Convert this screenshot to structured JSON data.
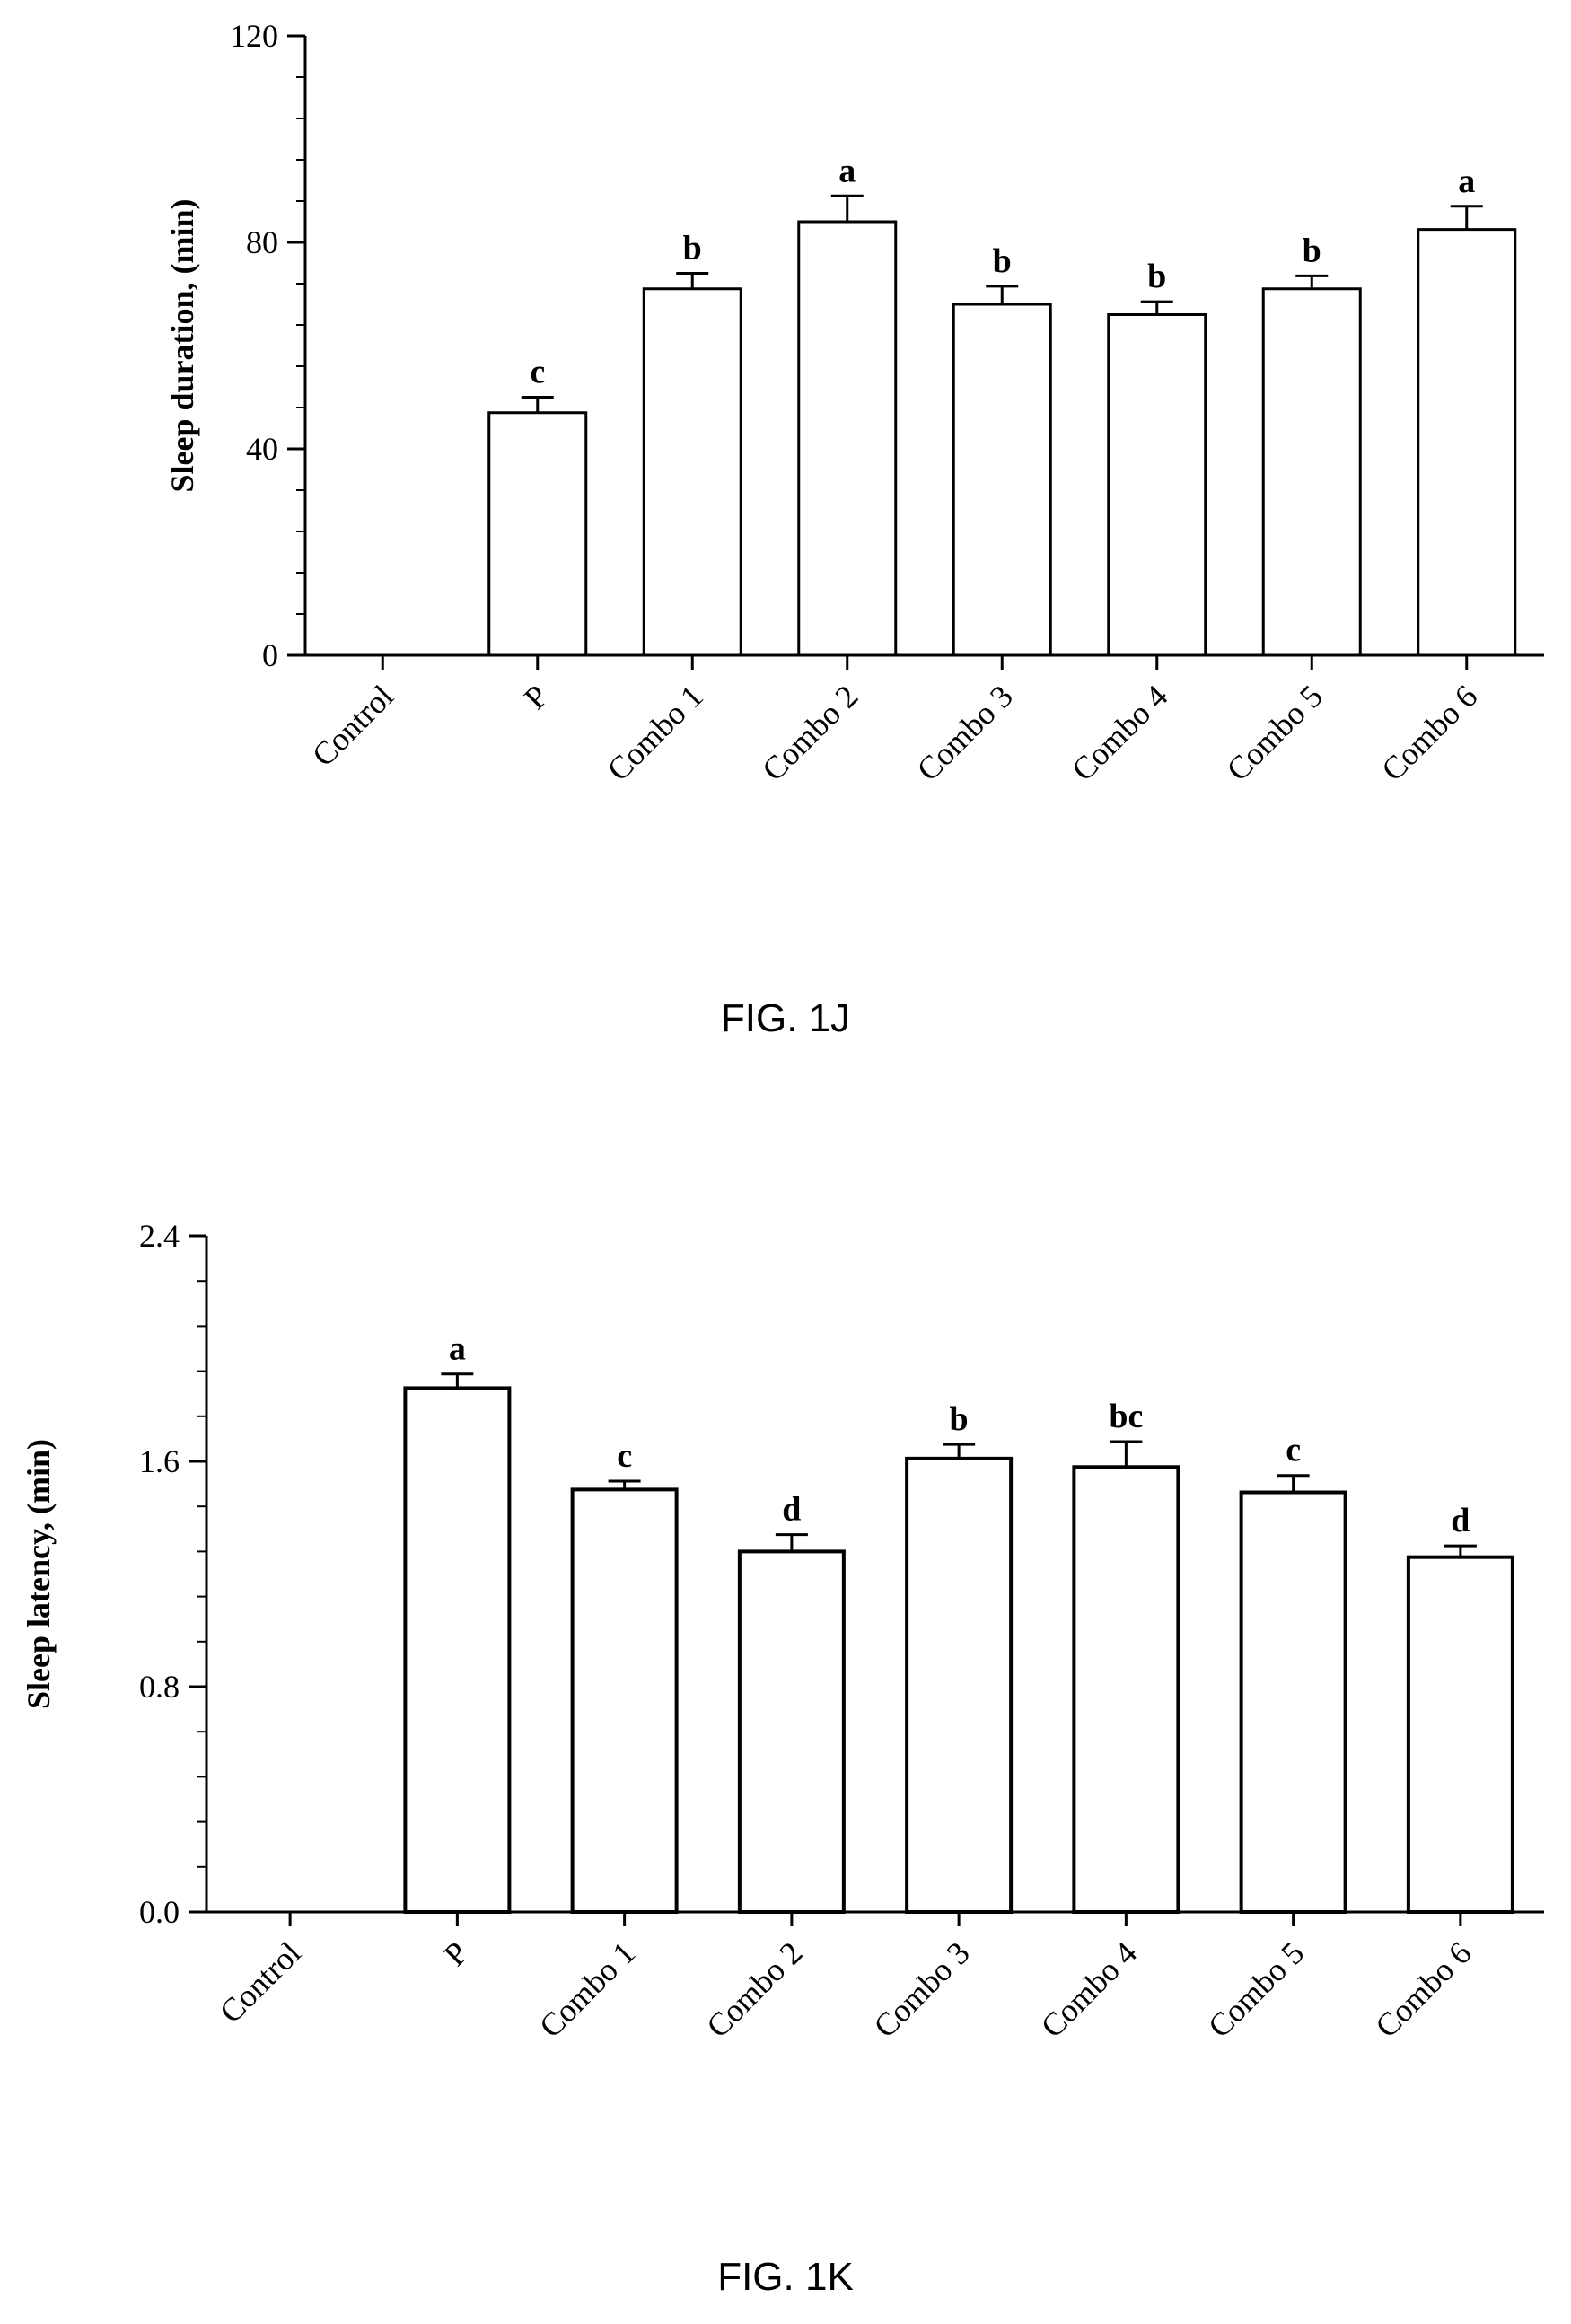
{
  "figures": [
    {
      "caption": "FIG. 1J"
    },
    {
      "caption": "FIG. 1K"
    }
  ],
  "chart_data": [
    {
      "type": "bar",
      "ylabel": "Sleep duration, (min)",
      "ylim": [
        0,
        120
      ],
      "yticks": [
        0,
        40,
        80,
        120
      ],
      "yticks_text": [
        "0",
        "40",
        "80",
        "120"
      ],
      "categories": [
        "Control",
        "P",
        "Combo 1",
        "Combo 2",
        "Combo 3",
        "Combo 4",
        "Combo 5",
        "Combo 6"
      ],
      "values": [
        null,
        47,
        71,
        84,
        68,
        66,
        71,
        82.5
      ],
      "errors": [
        null,
        3,
        3,
        5,
        3.5,
        2.5,
        2.5,
        4.5
      ],
      "labels": [
        "",
        "c",
        "b",
        "a",
        "b",
        "b",
        "b",
        "a"
      ],
      "grid": false,
      "bar_color": "#ffffff",
      "edge_color": "#000000"
    },
    {
      "type": "bar",
      "ylabel": "Sleep latency, (min)",
      "ylim": [
        0,
        2.4
      ],
      "yticks": [
        0,
        0.8,
        1.6,
        2.4
      ],
      "yticks_text": [
        "0.0",
        "0.8",
        "1.6",
        "2.4"
      ],
      "categories": [
        "Control",
        "P",
        "Combo 1",
        "Combo 2",
        "Combo 3",
        "Combo 4",
        "Combo 5",
        "Combo 6"
      ],
      "values": [
        null,
        1.86,
        1.5,
        1.28,
        1.61,
        1.58,
        1.49,
        1.26
      ],
      "errors": [
        null,
        0.05,
        0.03,
        0.06,
        0.05,
        0.09,
        0.06,
        0.04
      ],
      "labels": [
        "",
        "a",
        "c",
        "d",
        "b",
        "bc",
        "c",
        "d"
      ],
      "grid": false,
      "bar_color": "#ffffff",
      "edge_color": "#000000"
    }
  ]
}
